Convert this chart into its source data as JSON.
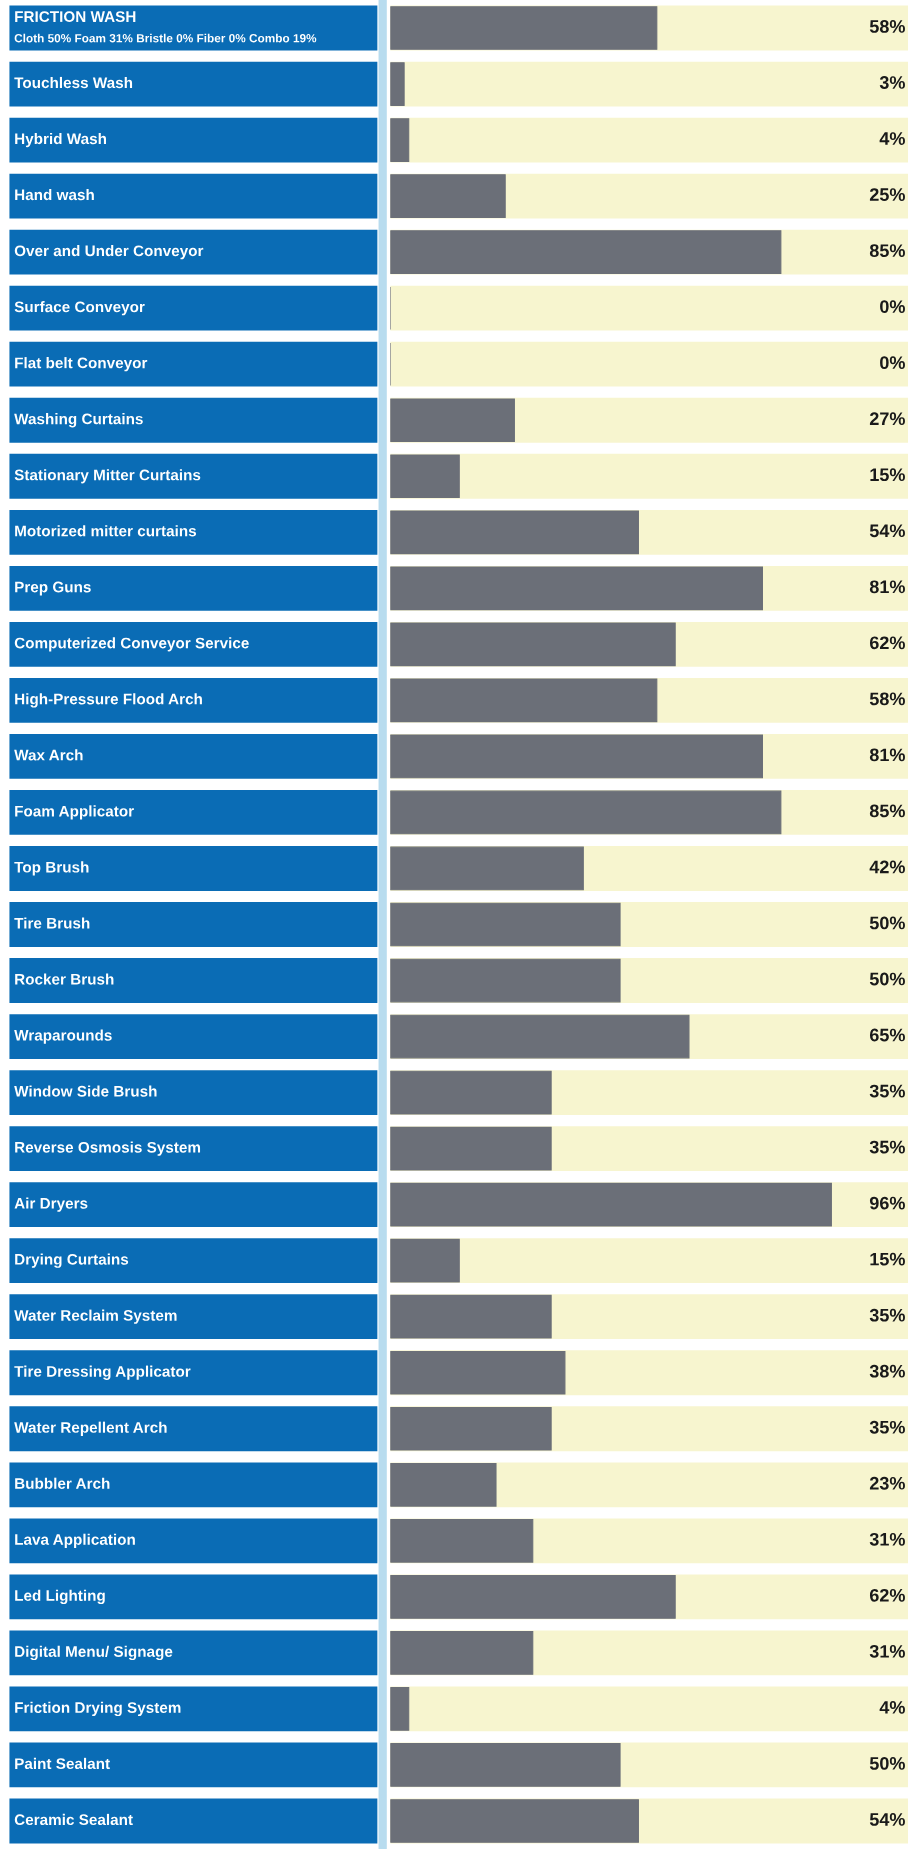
{
  "chart_data": {
    "type": "bar",
    "orientation": "horizontal",
    "color": "#6b6f78",
    "value_labels": [
      "58%",
      "3%",
      "4%",
      "25%",
      "85%",
      "0%",
      "0%",
      "27%",
      "15%",
      "54%",
      "81%",
      "62%",
      "58%",
      "81%",
      "85%",
      "42%",
      "50%",
      "50%",
      "65%",
      "35%",
      "35%",
      "96%",
      "15%",
      "35%",
      "38%",
      "35%",
      "23%",
      "31%",
      "62%",
      "31%",
      "4%",
      "50%",
      "54%"
    ],
    "categories": [
      "FRICTION WASH\nCloth 50% Foam 31% Bristle 0% Fiber 0% Combo 19%",
      "Touchless Wash",
      "Hybrid Wash",
      "Hand wash",
      "Over and Under Conveyor",
      "Surface Conveyor",
      "Flat belt Conveyor",
      "Washing Curtains",
      "Stationary Mitter Curtains",
      "Motorized mitter curtains",
      "Prep Guns",
      "Computerized Conveyor Service",
      "High-Pressure Flood Arch",
      "Wax Arch",
      "Foam Applicator",
      "Top Brush",
      "Tire Brush",
      "Rocker Brush",
      "Wraparounds",
      "Window Side Brush",
      "Reverse Osmosis System",
      "Air Dryers",
      "Drying Curtains",
      "Water Reclaim System",
      "Tire Dressing Applicator",
      "Water Repellent Arch",
      "Bubbler Arch",
      "Lava Application",
      "Led Lighting",
      "Digital Menu/ Signage",
      "Friction Drying System",
      "Paint Sealant",
      "Ceramic Sealant"
    ],
    "values": [
      58,
      3,
      4,
      25,
      85,
      0,
      0,
      27,
      15,
      54,
      81,
      62,
      58,
      81,
      85,
      42,
      50,
      50,
      65,
      35,
      35,
      96,
      15,
      35,
      38,
      35,
      23,
      31,
      62,
      31,
      4,
      50,
      54
    ]
  }
}
